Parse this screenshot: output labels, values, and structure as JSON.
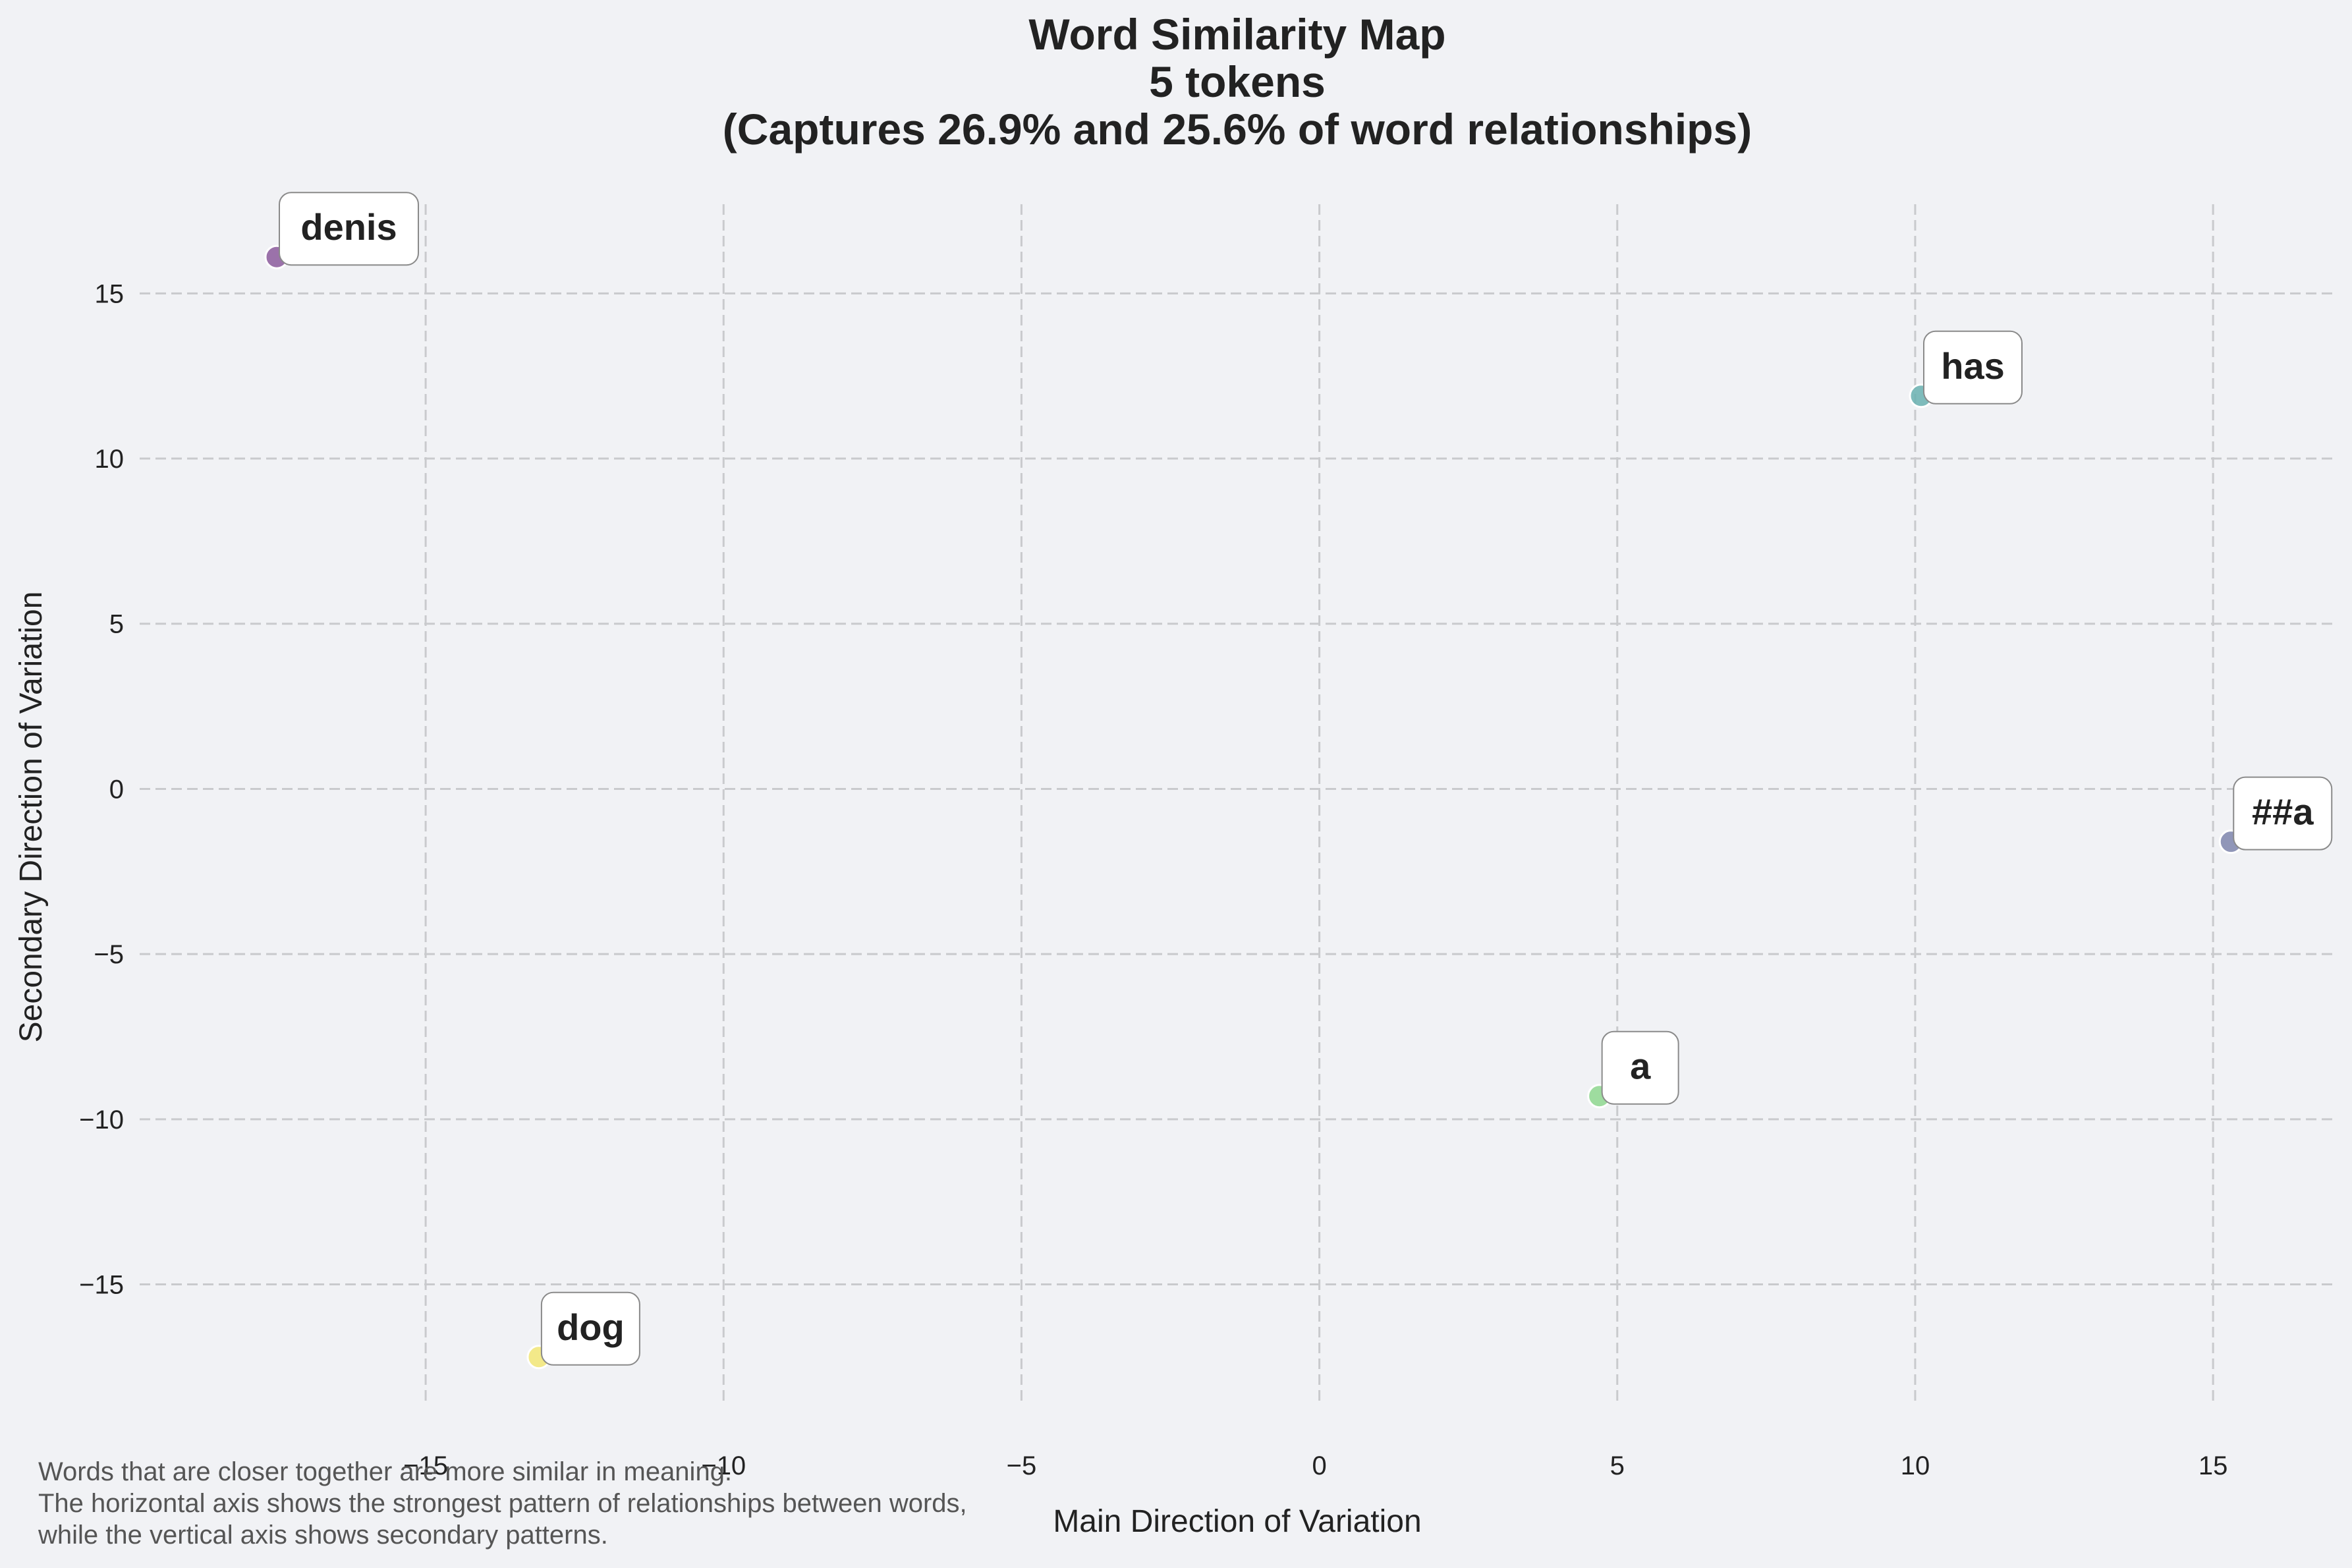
{
  "chart_data": {
    "type": "scatter",
    "title_lines": [
      "Word Similarity Map",
      "5 tokens",
      "(Captures 26.9% and 25.6% of word relationships)"
    ],
    "xlabel": "Main Direction of Variation",
    "ylabel": "Secondary Direction of Variation",
    "xlim": [
      -19.8,
      17.0
    ],
    "ylim": [
      -18.6,
      17.7
    ],
    "xticks": [
      -15,
      -10,
      -5,
      0,
      5,
      10,
      15
    ],
    "yticks": [
      -15,
      -10,
      -5,
      0,
      5,
      10,
      15
    ],
    "xtick_labels": [
      "−15",
      "−10",
      "−5",
      "0",
      "5",
      "10",
      "15"
    ],
    "ytick_labels": [
      "−15",
      "−10",
      "−5",
      "0",
      "5",
      "10",
      "15"
    ],
    "grid": true,
    "points": [
      {
        "label": "denis",
        "x": -17.5,
        "y": 16.1,
        "color": "#8c5c9c"
      },
      {
        "label": "has",
        "x": 10.1,
        "y": 11.9,
        "color": "#6ab1b0"
      },
      {
        "label": "##a",
        "x": 15.3,
        "y": -1.6,
        "color": "#7f86ad"
      },
      {
        "label": "a",
        "x": 4.7,
        "y": -9.3,
        "color": "#8fd88f"
      },
      {
        "label": "dog",
        "x": -13.1,
        "y": -17.2,
        "color": "#f3e775"
      }
    ]
  },
  "footnote": [
    "Words that are closer together are more similar in meaning.",
    "The horizontal axis shows the strongest pattern of relationships between words,",
    "while the vertical axis shows secondary patterns."
  ]
}
